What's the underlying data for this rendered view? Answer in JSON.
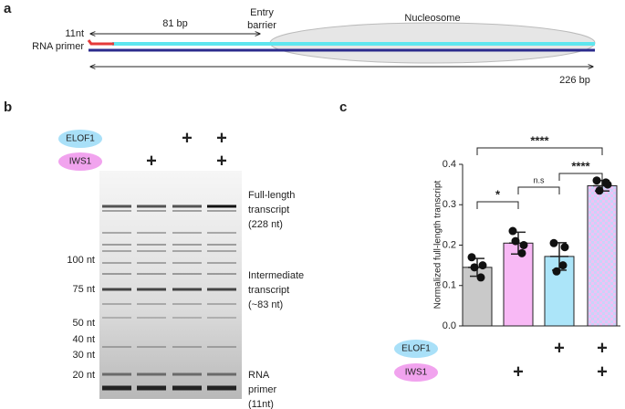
{
  "panel_a": {
    "label": "a",
    "primer": [
      "11nt",
      "RNA primer"
    ],
    "distance": "81 bp",
    "barrier": [
      "Entry",
      "barrier"
    ],
    "nucleosome": "Nucleosome",
    "length": "226 bp"
  },
  "panel_b": {
    "label": "b",
    "conditions": [
      {
        "label": "ELOF1",
        "marks": [
          null,
          null,
          "+",
          "+"
        ]
      },
      {
        "label": "IWS1",
        "marks": [
          null,
          "+",
          null,
          "+"
        ]
      }
    ],
    "size_markers": [
      "100 nt",
      "75 nt",
      "50 nt",
      "40 nt",
      "30 nt",
      "20 nt"
    ],
    "band_labels": [
      [
        "Full-length",
        "transcript",
        "(228 nt)"
      ],
      [
        "Intermediate",
        "transcript",
        "(~83 nt)"
      ],
      [
        "RNA",
        "primer",
        "(11nt)"
      ]
    ]
  },
  "panel_c": {
    "label": "c"
  },
  "chart_data": {
    "type": "bar",
    "ylabel": "Normalized full-length transcript",
    "values": [
      0.145,
      0.205,
      0.172,
      0.347
    ],
    "errors": [
      0.022,
      0.027,
      0.034,
      0.013
    ],
    "points": [
      [
        0.17,
        0.15,
        0.145,
        0.12
      ],
      [
        0.235,
        0.2,
        0.21,
        0.18
      ],
      [
        0.205,
        0.195,
        0.135,
        0.15
      ],
      [
        0.36,
        0.35,
        0.335,
        0.355
      ]
    ],
    "colors": [
      "#c9c9c9",
      "#f8b9f5",
      "#ace5f9",
      "#d9c6f6"
    ],
    "ylim": [
      0,
      0.4
    ],
    "yticks": [
      {
        "value": 0,
        "label": "0.0"
      },
      0.1,
      0.2,
      0.3,
      0.4
    ],
    "comparisons": [
      "****",
      "****",
      "n.s",
      "*"
    ],
    "conditions": [
      {
        "label": "ELOF1",
        "marks": [
          null,
          null,
          "+",
          "+"
        ]
      },
      {
        "label": "IWS1",
        "marks": [
          null,
          "+",
          null,
          "+"
        ]
      }
    ]
  }
}
